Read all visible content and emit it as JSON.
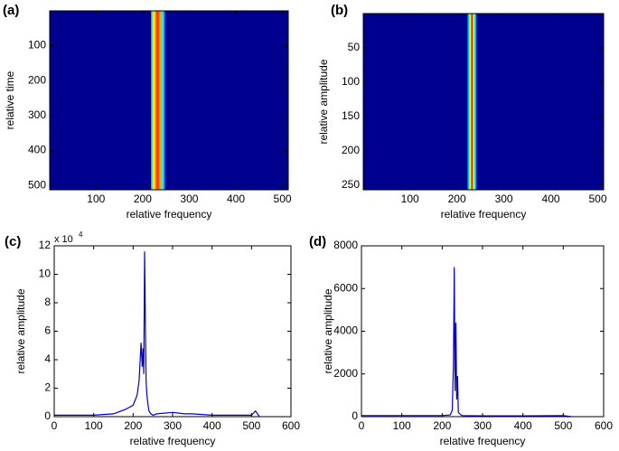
{
  "chart_data": [
    {
      "type": "heatmap",
      "label": "(a)",
      "xlabel": "relative frequency",
      "ylabel": "relative time",
      "xlim": [
        0.5,
        512.5
      ],
      "xticks": [
        100,
        200,
        300,
        400,
        500
      ],
      "ylim": [
        0.5,
        512.5
      ],
      "yticks": [
        100,
        200,
        300,
        400,
        500
      ],
      "y_reversed": true,
      "background": "#00008f",
      "stripe_x": [
        218,
        248
      ]
    },
    {
      "type": "heatmap",
      "label": "(b)",
      "xlabel": "relative frequency",
      "ylabel": "relative amplitude",
      "xlim": [
        0.5,
        512.5
      ],
      "xticks": [
        100,
        200,
        300,
        400,
        500
      ],
      "ylim": [
        0.5,
        256.5
      ],
      "yticks": [
        50,
        100,
        150,
        200,
        250
      ],
      "y_reversed": true,
      "background": "#00008f",
      "stripe_x": [
        222,
        242
      ]
    },
    {
      "type": "line",
      "label": "(c)",
      "xlabel": "relative frequency",
      "ylabel": "relative amplitude",
      "y_multiplier": {
        "base": "x 10",
        "exponent": "4"
      },
      "xlim": [
        0,
        600
      ],
      "xticks": [
        0,
        100,
        200,
        300,
        400,
        500,
        600
      ],
      "ylim": [
        0,
        12
      ],
      "yticks": [
        0,
        2,
        4,
        6,
        8,
        10,
        12
      ],
      "color": "#0000cc",
      "x": [
        0,
        50,
        100,
        150,
        180,
        200,
        210,
        215,
        220,
        223,
        225,
        227,
        229,
        231,
        233,
        235,
        238,
        240,
        245,
        250,
        260,
        300,
        330,
        350,
        400,
        450,
        500,
        510,
        520
      ],
      "values": [
        0.1,
        0.1,
        0.1,
        0.2,
        0.5,
        0.8,
        1.5,
        2.5,
        5.2,
        3.5,
        4.8,
        3.0,
        11.6,
        6.5,
        2.5,
        1.5,
        0.8,
        0.4,
        0.2,
        0.1,
        0.2,
        0.3,
        0.2,
        0.2,
        0.1,
        0.1,
        0.1,
        0.4,
        0
      ]
    },
    {
      "type": "line",
      "label": "(d)",
      "xlabel": "relative frequency",
      "ylabel": "relative amplitude",
      "xlim": [
        0,
        600
      ],
      "xticks": [
        0,
        100,
        200,
        300,
        400,
        500,
        600
      ],
      "ylim": [
        0,
        8000
      ],
      "yticks": [
        0,
        2000,
        4000,
        6000,
        8000
      ],
      "color": "#0000cc",
      "x": [
        0,
        100,
        200,
        220,
        225,
        228,
        230,
        232,
        234,
        236,
        238,
        240,
        245,
        250,
        300,
        400,
        500,
        520
      ],
      "values": [
        50,
        50,
        50,
        80,
        300,
        2500,
        7000,
        1200,
        4400,
        800,
        1900,
        200,
        100,
        50,
        40,
        40,
        50,
        0
      ]
    }
  ]
}
